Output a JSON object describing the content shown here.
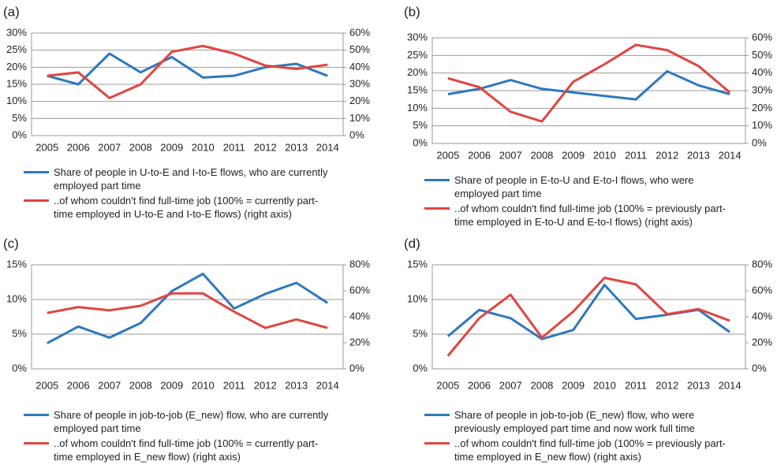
{
  "chart_data": [
    {
      "type": "line",
      "panel": "(a)",
      "categories": [
        "2005",
        "2006",
        "2007",
        "2008",
        "2009",
        "2010",
        "2011",
        "2012",
        "2013",
        "2014"
      ],
      "series": [
        {
          "name": "Share of people in U-to-E and I-to-E flows, who are currently employed part time",
          "color": "#2e78bd",
          "values": [
            17.5,
            15,
            24,
            18.5,
            23,
            17,
            17.5,
            20,
            21,
            17.5
          ]
        },
        {
          "name": "..of whom couldn't find full-time job (100% =  currently part-time employed  in U-to-E and I-to-E flows) (right axis)",
          "color": "#e04540",
          "axis": "y2",
          "values": [
            35,
            37,
            22,
            30,
            49,
            52.5,
            48,
            41,
            39,
            41.5
          ]
        }
      ],
      "ylim": [
        0,
        30
      ],
      "yticks": [
        {
          "value": 0,
          "label": "0%"
        },
        {
          "value": 5,
          "label": "5%"
        },
        {
          "value": 10,
          "label": "10%"
        },
        {
          "value": 15,
          "label": "15%"
        },
        {
          "value": 20,
          "label": "20%"
        },
        {
          "value": 25,
          "label": "25%"
        },
        {
          "value": 30,
          "label": "30%"
        }
      ],
      "y2lim": [
        0,
        60
      ],
      "y2ticks": [
        {
          "value": 0,
          "label": "0%"
        },
        {
          "value": 10,
          "label": "10%"
        },
        {
          "value": 20,
          "label": "20%"
        },
        {
          "value": 30,
          "label": "30%"
        },
        {
          "value": 40,
          "label": "40%"
        },
        {
          "value": 50,
          "label": "50%"
        },
        {
          "value": 60,
          "label": "60%"
        }
      ],
      "grid": true
    },
    {
      "type": "line",
      "panel": "(b)",
      "categories": [
        "2005",
        "2006",
        "2007",
        "2008",
        "2009",
        "2010",
        "2011",
        "2012",
        "2013",
        "2014"
      ],
      "series": [
        {
          "name": "Share of people in E-to-U and E-to-I flows, who were employed part time",
          "color": "#2e78bd",
          "values": [
            14,
            15.5,
            18,
            15.5,
            14.5,
            13.5,
            12.5,
            20.5,
            16.5,
            14
          ]
        },
        {
          "name": "..of whom couldn't find full-time job (100% =  previously part-time employed in E-to-U and E-to-I flows) (right axis)",
          "color": "#e04540",
          "axis": "y2",
          "values": [
            37,
            32,
            18,
            12.5,
            35,
            45,
            56,
            53,
            44,
            29
          ]
        }
      ],
      "ylim": [
        0,
        30
      ],
      "yticks": [
        {
          "value": 0,
          "label": "0%"
        },
        {
          "value": 5,
          "label": "5%"
        },
        {
          "value": 10,
          "label": "10%"
        },
        {
          "value": 15,
          "label": "15%"
        },
        {
          "value": 20,
          "label": "20%"
        },
        {
          "value": 25,
          "label": "25%"
        },
        {
          "value": 30,
          "label": "30%"
        }
      ],
      "y2lim": [
        0,
        60
      ],
      "y2ticks": [
        {
          "value": 0,
          "label": "0%"
        },
        {
          "value": 10,
          "label": "10%"
        },
        {
          "value": 20,
          "label": "20%"
        },
        {
          "value": 30,
          "label": "30%"
        },
        {
          "value": 40,
          "label": "40%"
        },
        {
          "value": 50,
          "label": "50%"
        },
        {
          "value": 60,
          "label": "60%"
        }
      ],
      "grid": true
    },
    {
      "type": "line",
      "panel": "(c)",
      "categories": [
        "2005",
        "2006",
        "2007",
        "2008",
        "2009",
        "2010",
        "2011",
        "2012",
        "2013",
        "2014"
      ],
      "series": [
        {
          "name": "Share of people in job-to-job (E_new) flow, who are currently employed part time",
          "color": "#2e78bd",
          "values": [
            3.7,
            6.1,
            4.5,
            6.6,
            11.2,
            13.7,
            8.7,
            10.8,
            12.4,
            9.5
          ]
        },
        {
          "name": "..of whom couldn't find full-time job (100% =  currently part-time employed  in E_new flow) (right axis)",
          "color": "#e04540",
          "axis": "y2",
          "values": [
            43,
            47.5,
            45,
            48.5,
            58,
            58,
            44,
            31.5,
            38,
            31.5
          ]
        }
      ],
      "ylim": [
        0,
        15
      ],
      "yticks": [
        {
          "value": 0,
          "label": "0%"
        },
        {
          "value": 5,
          "label": "5%"
        },
        {
          "value": 10,
          "label": "10%"
        },
        {
          "value": 15,
          "label": "15%"
        }
      ],
      "y2lim": [
        0,
        80
      ],
      "y2ticks": [
        {
          "value": 0,
          "label": "0%"
        },
        {
          "value": 20,
          "label": "20%"
        },
        {
          "value": 40,
          "label": "40%"
        },
        {
          "value": 60,
          "label": "60%"
        },
        {
          "value": 80,
          "label": "80%"
        }
      ],
      "grid": true
    },
    {
      "type": "line",
      "panel": "(d)",
      "categories": [
        "2005",
        "2006",
        "2007",
        "2008",
        "2009",
        "2010",
        "2011",
        "2012",
        "2013",
        "2014"
      ],
      "series": [
        {
          "name": "Share of people in job-to-job (E_new) flow, who were previously employed part time and now work full time",
          "color": "#2e78bd",
          "values": [
            4.7,
            8.5,
            7.3,
            4.3,
            5.6,
            12.1,
            7.2,
            7.8,
            8.5,
            5.3
          ]
        },
        {
          "name": "..of whom couldn't find full-time job (100% =  previously part-time employed  in E_new flow) (right axis)",
          "color": "#e04540",
          "axis": "y2",
          "values": [
            10,
            39,
            57,
            24,
            44,
            70,
            65,
            42,
            46,
            37
          ]
        }
      ],
      "ylim": [
        0,
        15
      ],
      "yticks": [
        {
          "value": 0,
          "label": "0%"
        },
        {
          "value": 5,
          "label": "5%"
        },
        {
          "value": 10,
          "label": "10%"
        },
        {
          "value": 15,
          "label": "15%"
        }
      ],
      "y2lim": [
        0,
        80
      ],
      "y2ticks": [
        {
          "value": 0,
          "label": "0%"
        },
        {
          "value": 20,
          "label": "20%"
        },
        {
          "value": 40,
          "label": "40%"
        },
        {
          "value": 60,
          "label": "60%"
        },
        {
          "value": 80,
          "label": "80%"
        }
      ],
      "grid": true
    }
  ]
}
